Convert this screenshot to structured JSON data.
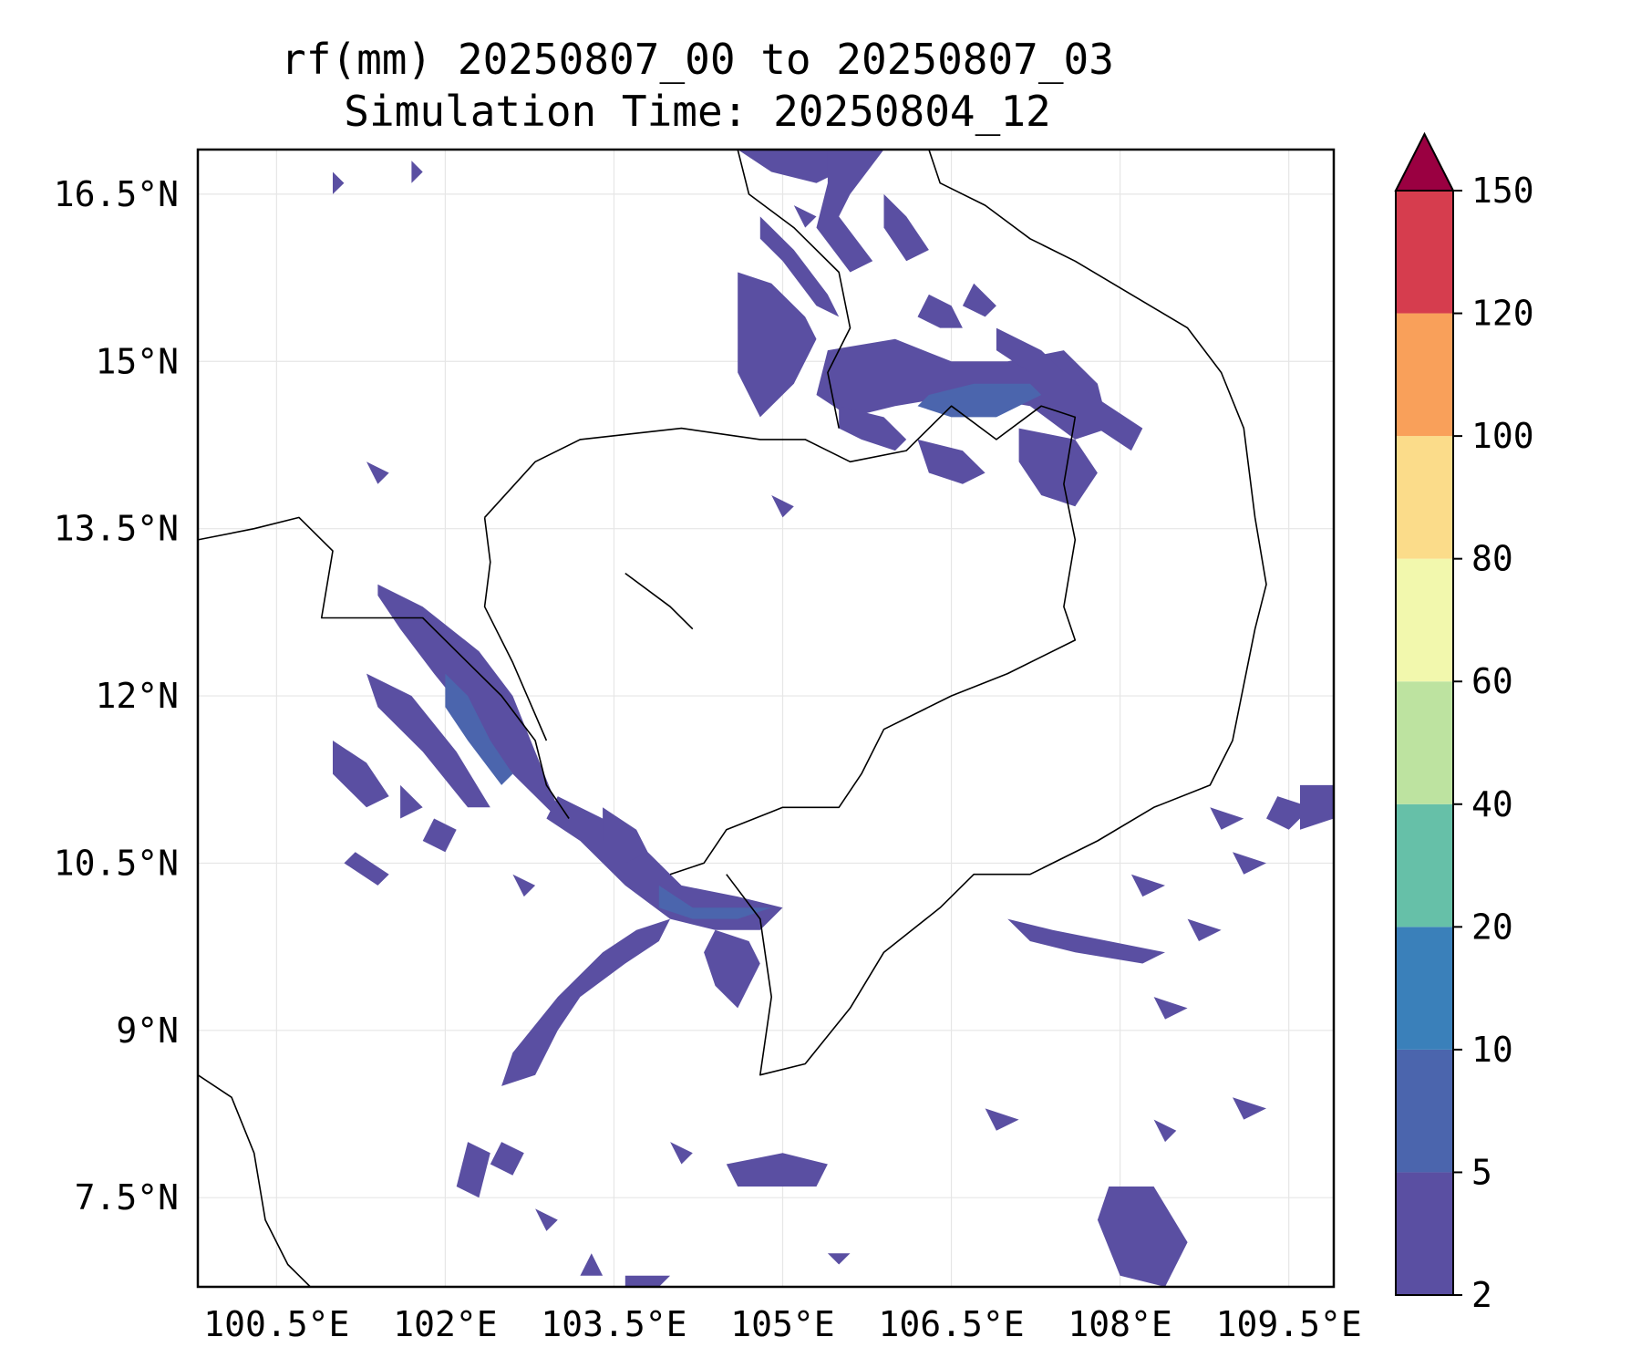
{
  "title": {
    "line1": "rf(mm) 20250807_00 to 20250807_03",
    "line2": "Simulation Time: 20250804_12"
  },
  "map": {
    "lon_range": [
      99.8,
      109.9
    ],
    "lat_range": [
      6.7,
      16.9
    ],
    "x_ticks": [
      {
        "lon": 100.5,
        "label": "100.5°E"
      },
      {
        "lon": 102.0,
        "label": "102°E"
      },
      {
        "lon": 103.5,
        "label": "103.5°E"
      },
      {
        "lon": 105.0,
        "label": "105°E"
      },
      {
        "lon": 106.5,
        "label": "106.5°E"
      },
      {
        "lon": 108.0,
        "label": "108°E"
      },
      {
        "lon": 109.5,
        "label": "109.5°E"
      }
    ],
    "y_ticks": [
      {
        "lat": 16.5,
        "label": "16.5°N"
      },
      {
        "lat": 15.0,
        "label": "15°N"
      },
      {
        "lat": 13.5,
        "label": "13.5°N"
      },
      {
        "lat": 12.0,
        "label": "12°N"
      },
      {
        "lat": 10.5,
        "label": "10.5°N"
      },
      {
        "lat": 9.0,
        "label": "9°N"
      },
      {
        "lat": 7.5,
        "label": "7.5°N"
      }
    ],
    "gridlines": true,
    "variable": "rainfall accumulation",
    "units": "mm"
  },
  "colorbar": {
    "extend": "max",
    "levels": [
      2,
      5,
      10,
      20,
      40,
      60,
      80,
      100,
      120,
      150
    ],
    "tick_labels": [
      "2",
      "5",
      "10",
      "20",
      "40",
      "60",
      "80",
      "100",
      "120",
      "150"
    ],
    "colors": [
      "#5a4fa2",
      "#4b65ad",
      "#3a80ba",
      "#66c0a8",
      "#bde3a0",
      "#f2f8ad",
      "#fbdc8a",
      "#f9a05a",
      "#d63d4e"
    ],
    "extend_color": "#9a0041"
  },
  "colors": {
    "coastline": "#000000",
    "grid": "#e6e6e6"
  }
}
